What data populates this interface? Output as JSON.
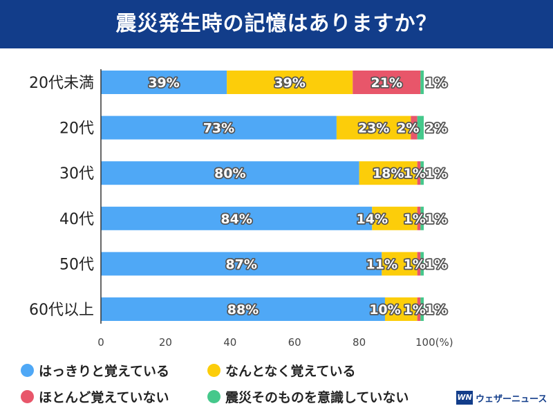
{
  "title": "震災発生時の記憶はありますか？",
  "colors": {
    "title_bg": "#123d8a",
    "series": [
      "#4fa8f6",
      "#fccd0a",
      "#e8566a",
      "#45c88b"
    ],
    "axis": "#333333",
    "label_fill": "#ffffff",
    "label_stroke": "#555555"
  },
  "chart_data": {
    "type": "bar",
    "orientation": "horizontal",
    "stacked": true,
    "categories": [
      "20代未満",
      "20代",
      "30代",
      "40代",
      "50代",
      "60代以上"
    ],
    "series": [
      {
        "name": "はっきりと覚えている",
        "values": [
          39,
          73,
          80,
          84,
          87,
          88
        ]
      },
      {
        "name": "なんとなく覚えている",
        "values": [
          39,
          23,
          18,
          14,
          11,
          10
        ]
      },
      {
        "name": "ほとんど覚えていない",
        "values": [
          21,
          2,
          1,
          1,
          1,
          1
        ]
      },
      {
        "name": "震災そのものを意識していない",
        "values": [
          1,
          2,
          1,
          1,
          1,
          1
        ]
      }
    ],
    "x_ticks": [
      "0",
      "20",
      "40",
      "60",
      "80",
      "100(%)"
    ],
    "xlim": [
      0,
      100
    ],
    "grid": false,
    "legend_position": "bottom"
  },
  "legend": [
    {
      "label": "はっきりと覚えている"
    },
    {
      "label": "なんとなく覚えている"
    },
    {
      "label": "ほとんど覚えていない"
    },
    {
      "label": "震災そのものを意識していない"
    }
  ],
  "logo": {
    "mark": "WN",
    "text": "ウェザーニュース"
  }
}
